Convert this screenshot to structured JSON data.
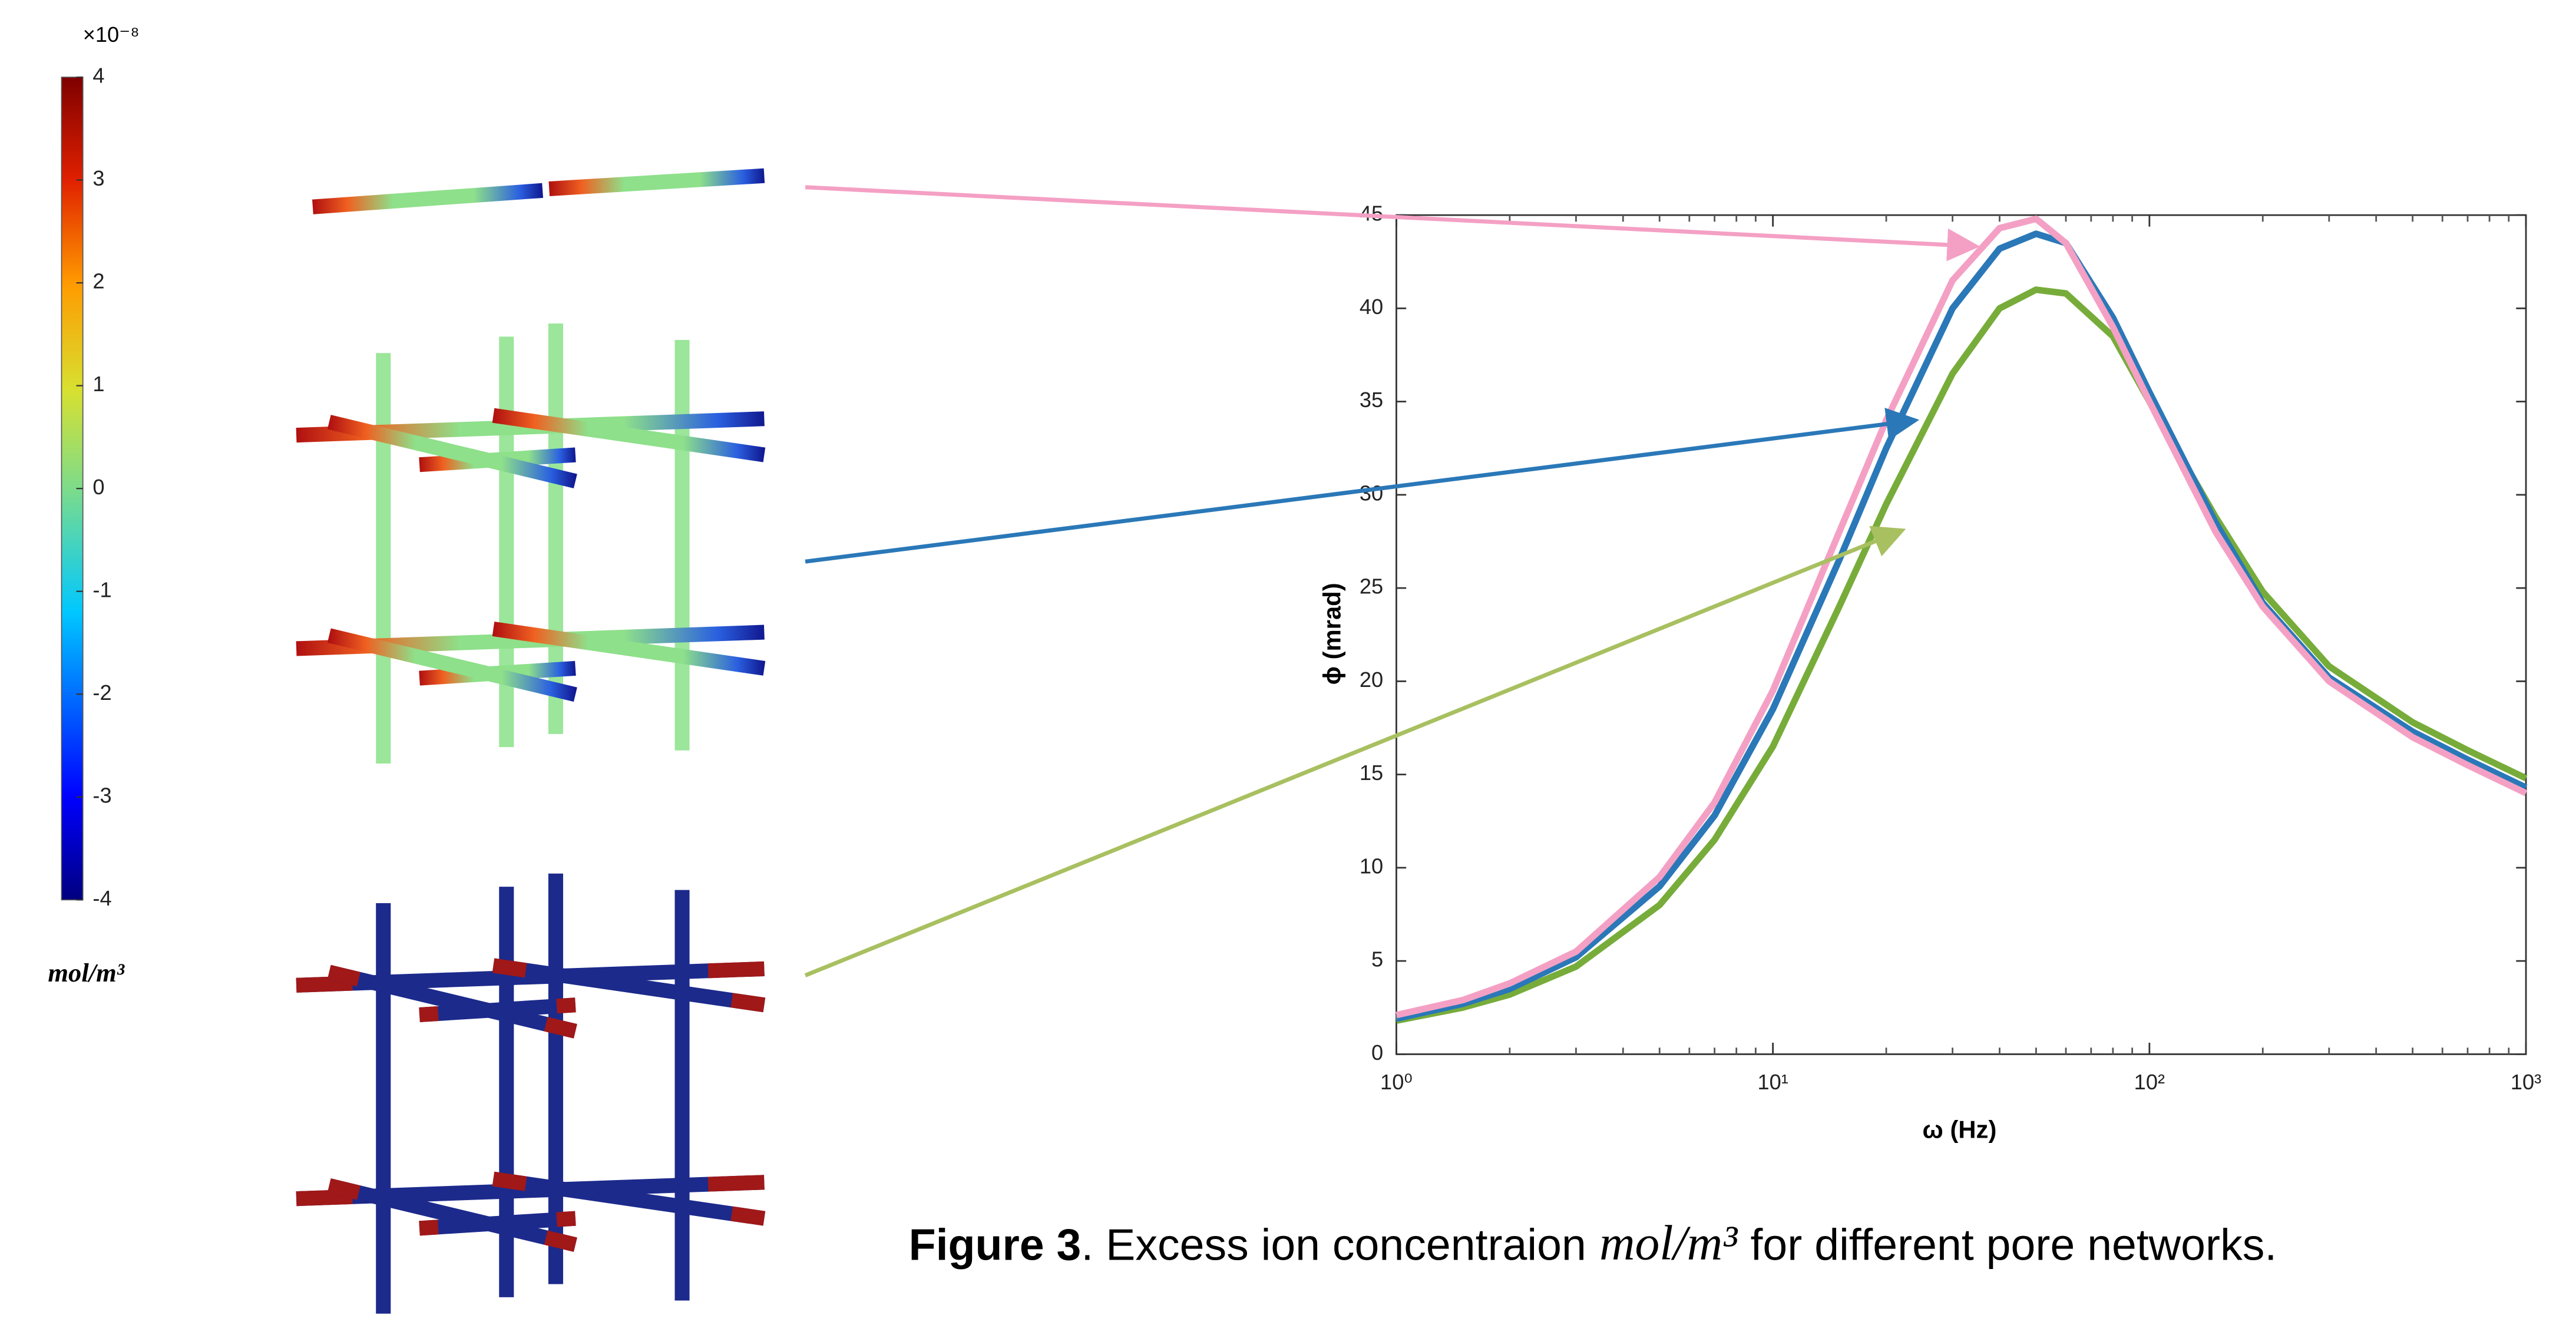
{
  "colorbar": {
    "exponent_label": "×10⁻⁸",
    "ticks": [
      4,
      3,
      2,
      1,
      0,
      -1,
      -2,
      -3,
      -4
    ],
    "unit": "mol/m³"
  },
  "chart_data": {
    "type": "line",
    "x": [
      1,
      1.5,
      2,
      3,
      5,
      7,
      10,
      15,
      20,
      30,
      40,
      50,
      60,
      80,
      100,
      150,
      200,
      300,
      500,
      700,
      1000
    ],
    "series": [
      {
        "color": "#f4a0c4",
        "values": [
          2.1,
          2.9,
          3.8,
          5.5,
          9.5,
          13.5,
          19.5,
          28,
          34,
          41.5,
          44.3,
          44.8,
          43.5,
          39,
          35,
          28,
          24,
          20,
          17,
          15.5,
          14
        ]
      },
      {
        "color": "#2a78b8",
        "values": [
          1.9,
          2.7,
          3.5,
          5.2,
          9,
          12.8,
          18.5,
          26.5,
          32.5,
          40,
          43.2,
          44,
          43.5,
          39.5,
          35.5,
          28.5,
          24.2,
          20.2,
          17.3,
          15.8,
          14.3
        ]
      },
      {
        "color": "#77ac3a",
        "values": [
          1.8,
          2.5,
          3.2,
          4.7,
          8,
          11.5,
          16.5,
          24,
          29.5,
          36.5,
          40,
          41,
          40.8,
          38.5,
          35,
          28.8,
          24.8,
          20.8,
          17.8,
          16.3,
          14.8
        ]
      }
    ],
    "xlabel": "ω (Hz)",
    "ylabel": "ϕ (mrad)",
    "xscale": "log",
    "xlim": [
      1,
      1000
    ],
    "xticks": [
      {
        "value": 1,
        "label": "10⁰"
      },
      {
        "value": 10,
        "label": "10¹"
      },
      {
        "value": 100,
        "label": "10²"
      },
      {
        "value": 1000,
        "label": "10³"
      }
    ],
    "ylim": [
      0,
      45
    ],
    "yticks": [
      0,
      5,
      10,
      15,
      20,
      25,
      30,
      35,
      40,
      45
    ]
  },
  "caption": {
    "label": "Figure 3",
    "text": ". Excess ion concentraion",
    "math": "mol/m³",
    "text_end": "for different pore networks."
  }
}
